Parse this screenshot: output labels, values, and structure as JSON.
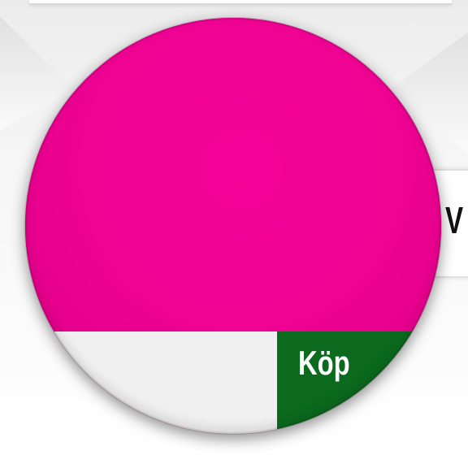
{
  "side_text": "V",
  "buy_button": {
    "label": "Köp"
  },
  "colors": {
    "accent": "#ef0393",
    "buy_button": "#0b6a1e",
    "panel": "#f0f0f0"
  }
}
